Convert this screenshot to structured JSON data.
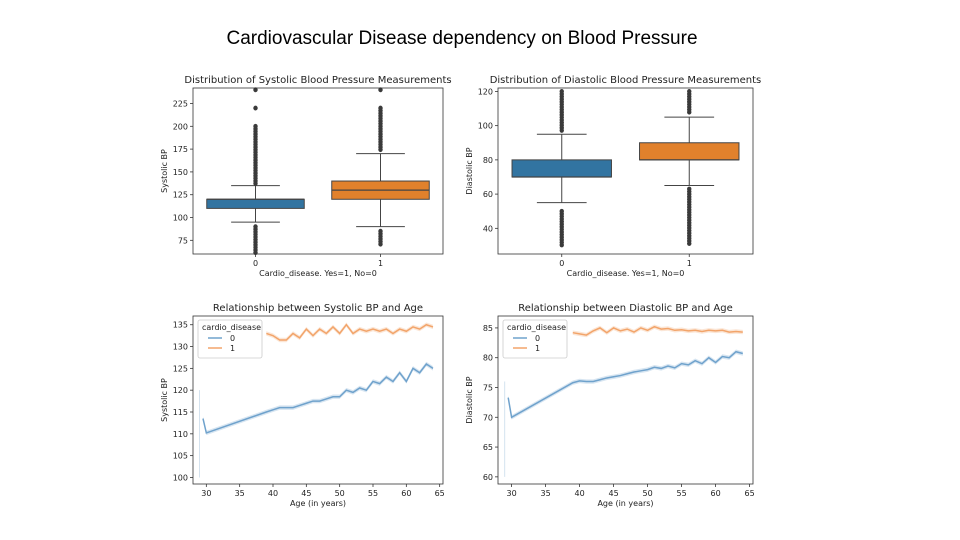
{
  "slide_title": "Cardiovascular Disease dependency on Blood Pressure",
  "colors": {
    "blue": "#3274a1",
    "orange": "#e1812c",
    "blue_line": "#6fa2cc",
    "orange_line": "#f2a46a",
    "outlier": "#3a3a3a"
  },
  "chart_data": [
    {
      "type": "box",
      "title": "Distribution of Systolic Blood Pressure Measurements",
      "xlabel": "Cardio_disease. Yes=1, No=0",
      "ylabel": "Systolic BP",
      "categories": [
        "0",
        "1"
      ],
      "ylim": [
        60,
        242
      ],
      "yticks": [
        75,
        100,
        125,
        150,
        175,
        200,
        225
      ],
      "boxes": [
        {
          "category": "0",
          "q1": 110,
          "median": 120,
          "q3": 120,
          "whisker_low": 95,
          "whisker_high": 135,
          "outlier_low": [
            60,
            90
          ],
          "outlier_high": [
            137,
            200
          ],
          "outlier_extra": [
            220,
            240
          ]
        },
        {
          "category": "1",
          "q1": 120,
          "median": 130,
          "q3": 140,
          "whisker_low": 90,
          "whisker_high": 170,
          "outlier_low": [
            70,
            85
          ],
          "outlier_high": [
            172,
            220
          ],
          "outlier_extra": [
            240
          ]
        }
      ]
    },
    {
      "type": "box",
      "title": "Distribution of Diastolic Blood Pressure Measurements",
      "xlabel": "Cardio_disease. Yes=1, No=0",
      "ylabel": "Diastolic BP",
      "categories": [
        "0",
        "1"
      ],
      "ylim": [
        25,
        122
      ],
      "yticks": [
        40,
        60,
        80,
        100,
        120
      ],
      "boxes": [
        {
          "category": "0",
          "q1": 70,
          "median": 70,
          "q3": 80,
          "whisker_low": 55,
          "whisker_high": 95,
          "outlier_low": [
            30,
            50
          ],
          "outlier_high": [
            97,
            120
          ],
          "outlier_extra": []
        },
        {
          "category": "1",
          "q1": 80,
          "median": 80,
          "q3": 90,
          "whisker_low": 65,
          "whisker_high": 105,
          "outlier_low": [
            30,
            63
          ],
          "outlier_high": [
            107,
            120
          ],
          "outlier_extra": []
        }
      ]
    },
    {
      "type": "line",
      "title": "Relationship between Systolic BP and Age",
      "xlabel": "Age (in years)",
      "ylabel": "Systolic BP",
      "xlim": [
        28,
        65.5
      ],
      "ylim": [
        98.5,
        137
      ],
      "xticks": [
        30,
        35,
        40,
        45,
        50,
        55,
        60,
        65
      ],
      "yticks": [
        100,
        105,
        110,
        115,
        120,
        125,
        130,
        135
      ],
      "legend": {
        "title": "cardio_disease",
        "position": "upper-left",
        "entries": [
          "0",
          "1"
        ]
      },
      "series": [
        {
          "name": "0",
          "color": "#6fa2cc",
          "x": [
            29.5,
            30,
            39,
            40,
            41,
            42,
            43,
            44,
            45,
            46,
            47,
            48,
            49,
            50,
            51,
            52,
            53,
            54,
            55,
            56,
            57,
            58,
            59,
            60,
            61,
            62,
            63,
            64
          ],
          "y": [
            113.5,
            110.2,
            115,
            115.5,
            116,
            116,
            116,
            116.5,
            117,
            117.5,
            117.5,
            118,
            118.5,
            118.5,
            120,
            119.5,
            120.5,
            120,
            122,
            121.5,
            123,
            122,
            124,
            122,
            125,
            124,
            126,
            125
          ]
        },
        {
          "name": "1",
          "color": "#f2a46a",
          "x": [
            39,
            40,
            41,
            42,
            43,
            44,
            45,
            46,
            47,
            48,
            49,
            50,
            51,
            52,
            53,
            54,
            55,
            56,
            57,
            58,
            59,
            60,
            61,
            62,
            63,
            64
          ],
          "y": [
            133,
            132.5,
            131.5,
            131.5,
            133,
            132,
            134,
            132.5,
            134,
            133,
            134.5,
            133,
            135,
            133,
            134,
            133.5,
            134,
            133.5,
            134,
            133,
            134,
            133.5,
            134.5,
            134,
            135,
            134.5
          ]
        },
        {
          "name": "",
          "color": "#6fa2cc",
          "x": [
            29,
            29
          ],
          "y": [
            100,
            120
          ]
        }
      ]
    },
    {
      "type": "line",
      "title": "Relationship between Diastolic BP and Age",
      "xlabel": "Age (in years)",
      "ylabel": "Diastolic BP",
      "xlim": [
        28,
        65.5
      ],
      "ylim": [
        58.8,
        87
      ],
      "xticks": [
        30,
        35,
        40,
        45,
        50,
        55,
        60,
        65
      ],
      "yticks": [
        60,
        65,
        70,
        75,
        80,
        85
      ],
      "legend": {
        "title": "cardio_disease",
        "position": "upper-left",
        "entries": [
          "0",
          "1"
        ]
      },
      "series": [
        {
          "name": "0",
          "color": "#6fa2cc",
          "x": [
            29.5,
            30,
            39,
            40,
            41,
            42,
            43,
            44,
            45,
            46,
            47,
            48,
            49,
            50,
            51,
            52,
            53,
            54,
            55,
            56,
            57,
            58,
            59,
            60,
            61,
            62,
            63,
            64
          ],
          "y": [
            73.3,
            70,
            75.8,
            76.1,
            76,
            76,
            76.3,
            76.6,
            76.8,
            77,
            77.3,
            77.6,
            77.8,
            78,
            78.4,
            78.2,
            78.6,
            78.3,
            79,
            78.8,
            79.5,
            79,
            80,
            79.2,
            80.2,
            80,
            81,
            80.7
          ]
        },
        {
          "name": "1",
          "color": "#f2a46a",
          "x": [
            39,
            40,
            41,
            42,
            43,
            44,
            45,
            46,
            47,
            48,
            49,
            50,
            51,
            52,
            53,
            54,
            55,
            56,
            57,
            58,
            59,
            60,
            61,
            62,
            63,
            64
          ],
          "y": [
            84.2,
            84,
            83.8,
            84.5,
            85,
            84.2,
            85,
            84.5,
            84.8,
            84.3,
            85,
            84.6,
            85.2,
            84.8,
            84.9,
            84.6,
            84.7,
            84.5,
            84.6,
            84.4,
            84.6,
            84.5,
            84.6,
            84.3,
            84.4,
            84.3
          ]
        },
        {
          "name": "",
          "color": "#6fa2cc",
          "x": [
            29,
            29
          ],
          "y": [
            60,
            76
          ]
        }
      ]
    }
  ]
}
